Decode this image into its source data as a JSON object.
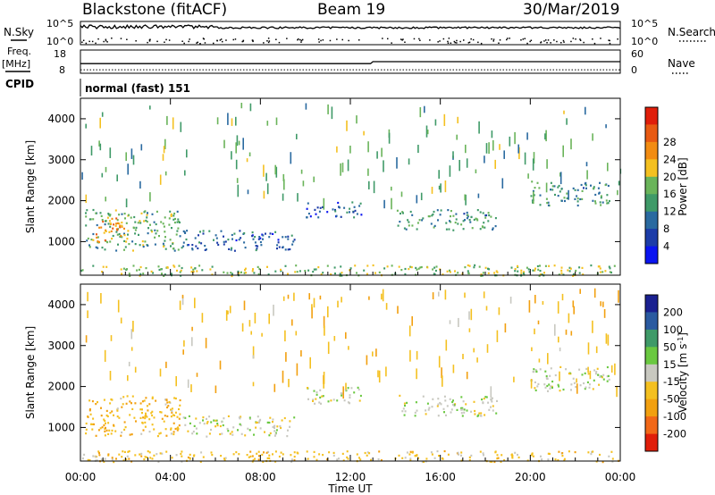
{
  "header": {
    "station": "Blackstone (fitACF)",
    "beam": "Beam 19",
    "date": "30/Mar/2019",
    "cpid_text": "normal (fast) 151"
  },
  "side_labels": {
    "nsky": "N.Sky",
    "nsearch": "N.Search",
    "freq": "Freq.",
    "freq_unit": "[MHz]",
    "nave": "Nave",
    "cpid": "CPID"
  },
  "top_axes": {
    "nsky_ticks": [
      "10^5",
      "10^0"
    ],
    "nsearch_ticks": [
      "10^5",
      "10^0"
    ],
    "freq_ticks": [
      "18",
      "8"
    ],
    "nave_ticks": [
      "60",
      "0"
    ]
  },
  "colors": {
    "power": [
      "#0a14f0",
      "#1c3ca8",
      "#2a6aa0",
      "#3f9a68",
      "#6ab45a",
      "#f4c020",
      "#f28c12",
      "#e85a12",
      "#e01e0a"
    ],
    "velocity": [
      "#1a2090",
      "#2a5aa0",
      "#3f9a68",
      "#6ac840",
      "#c8c8c0",
      "#f4c020",
      "#f2a010",
      "#f26818",
      "#e01e0a"
    ]
  },
  "chart_data": [
    {
      "type": "heatmap",
      "name": "power",
      "ylabel": "Slant Range [km]",
      "ylim": [
        180,
        4500
      ],
      "yticks": [
        1000,
        2000,
        3000,
        4000
      ],
      "colorbar_label": "Power [dB]",
      "colorbar_ticks": [
        "4",
        "8",
        "12",
        "16",
        "20",
        "24",
        "28"
      ],
      "colorbar_range": [
        0,
        32
      ],
      "features": [
        {
          "t_start": 0.2,
          "t_end": 4.5,
          "r_start": 800,
          "r_end": 1800,
          "value": 14
        },
        {
          "t_start": 0.5,
          "t_end": 2.0,
          "r_start": 1000,
          "r_end": 1600,
          "value": 24
        },
        {
          "t_start": 4.5,
          "t_end": 9.5,
          "r_start": 800,
          "r_end": 1300,
          "value": 8
        },
        {
          "t_start": 10.0,
          "t_end": 12.5,
          "r_start": 1600,
          "r_end": 2000,
          "value": 8
        },
        {
          "t_start": 14.0,
          "t_end": 18.5,
          "r_start": 1300,
          "r_end": 1800,
          "value": 12
        },
        {
          "t_start": 20.0,
          "t_end": 23.5,
          "r_start": 1900,
          "r_end": 2500,
          "value": 12
        },
        {
          "t_start": 0.0,
          "t_end": 24.0,
          "r_start": 180,
          "r_end": 450,
          "value": 16
        }
      ]
    },
    {
      "type": "heatmap",
      "name": "velocity",
      "ylabel": "Slant Range [km]",
      "ylim": [
        180,
        4500
      ],
      "yticks": [
        1000,
        2000,
        3000,
        4000
      ],
      "colorbar_label": "Velocity [m s^-1]",
      "colorbar_ticks": [
        "200",
        "100",
        "50",
        "15",
        "-15",
        "-50",
        "-100",
        "-200"
      ],
      "features": [
        {
          "t_start": 0.2,
          "t_end": 4.5,
          "r_start": 800,
          "r_end": 1800,
          "value": -40
        },
        {
          "t_start": 4.5,
          "t_end": 9.5,
          "r_start": 800,
          "r_end": 1300,
          "value": 0
        },
        {
          "t_start": 10.0,
          "t_end": 12.5,
          "r_start": 1600,
          "r_end": 2000,
          "value": 0
        },
        {
          "t_start": 14.0,
          "t_end": 18.5,
          "r_start": 1300,
          "r_end": 1800,
          "value": 0
        },
        {
          "t_start": 20.0,
          "t_end": 23.5,
          "r_start": 1900,
          "r_end": 2500,
          "value": 0
        },
        {
          "t_start": 0.0,
          "t_end": 24.0,
          "r_start": 180,
          "r_end": 450,
          "value": -30
        }
      ]
    },
    {
      "type": "line",
      "name": "nave",
      "x": [
        0,
        12.9,
        13.0,
        24
      ],
      "y": [
        25,
        25,
        30,
        30
      ],
      "ylim": [
        0,
        60
      ]
    },
    {
      "type": "line",
      "name": "freq",
      "x": [
        0,
        24
      ],
      "y": [
        9.5,
        9.5
      ],
      "ylim": [
        8,
        18
      ]
    }
  ],
  "time_axis": {
    "label": "Time UT",
    "ticks": [
      "00:00",
      "04:00",
      "08:00",
      "12:00",
      "16:00",
      "20:00",
      "00:00"
    ],
    "range_hours": [
      0,
      24
    ]
  }
}
